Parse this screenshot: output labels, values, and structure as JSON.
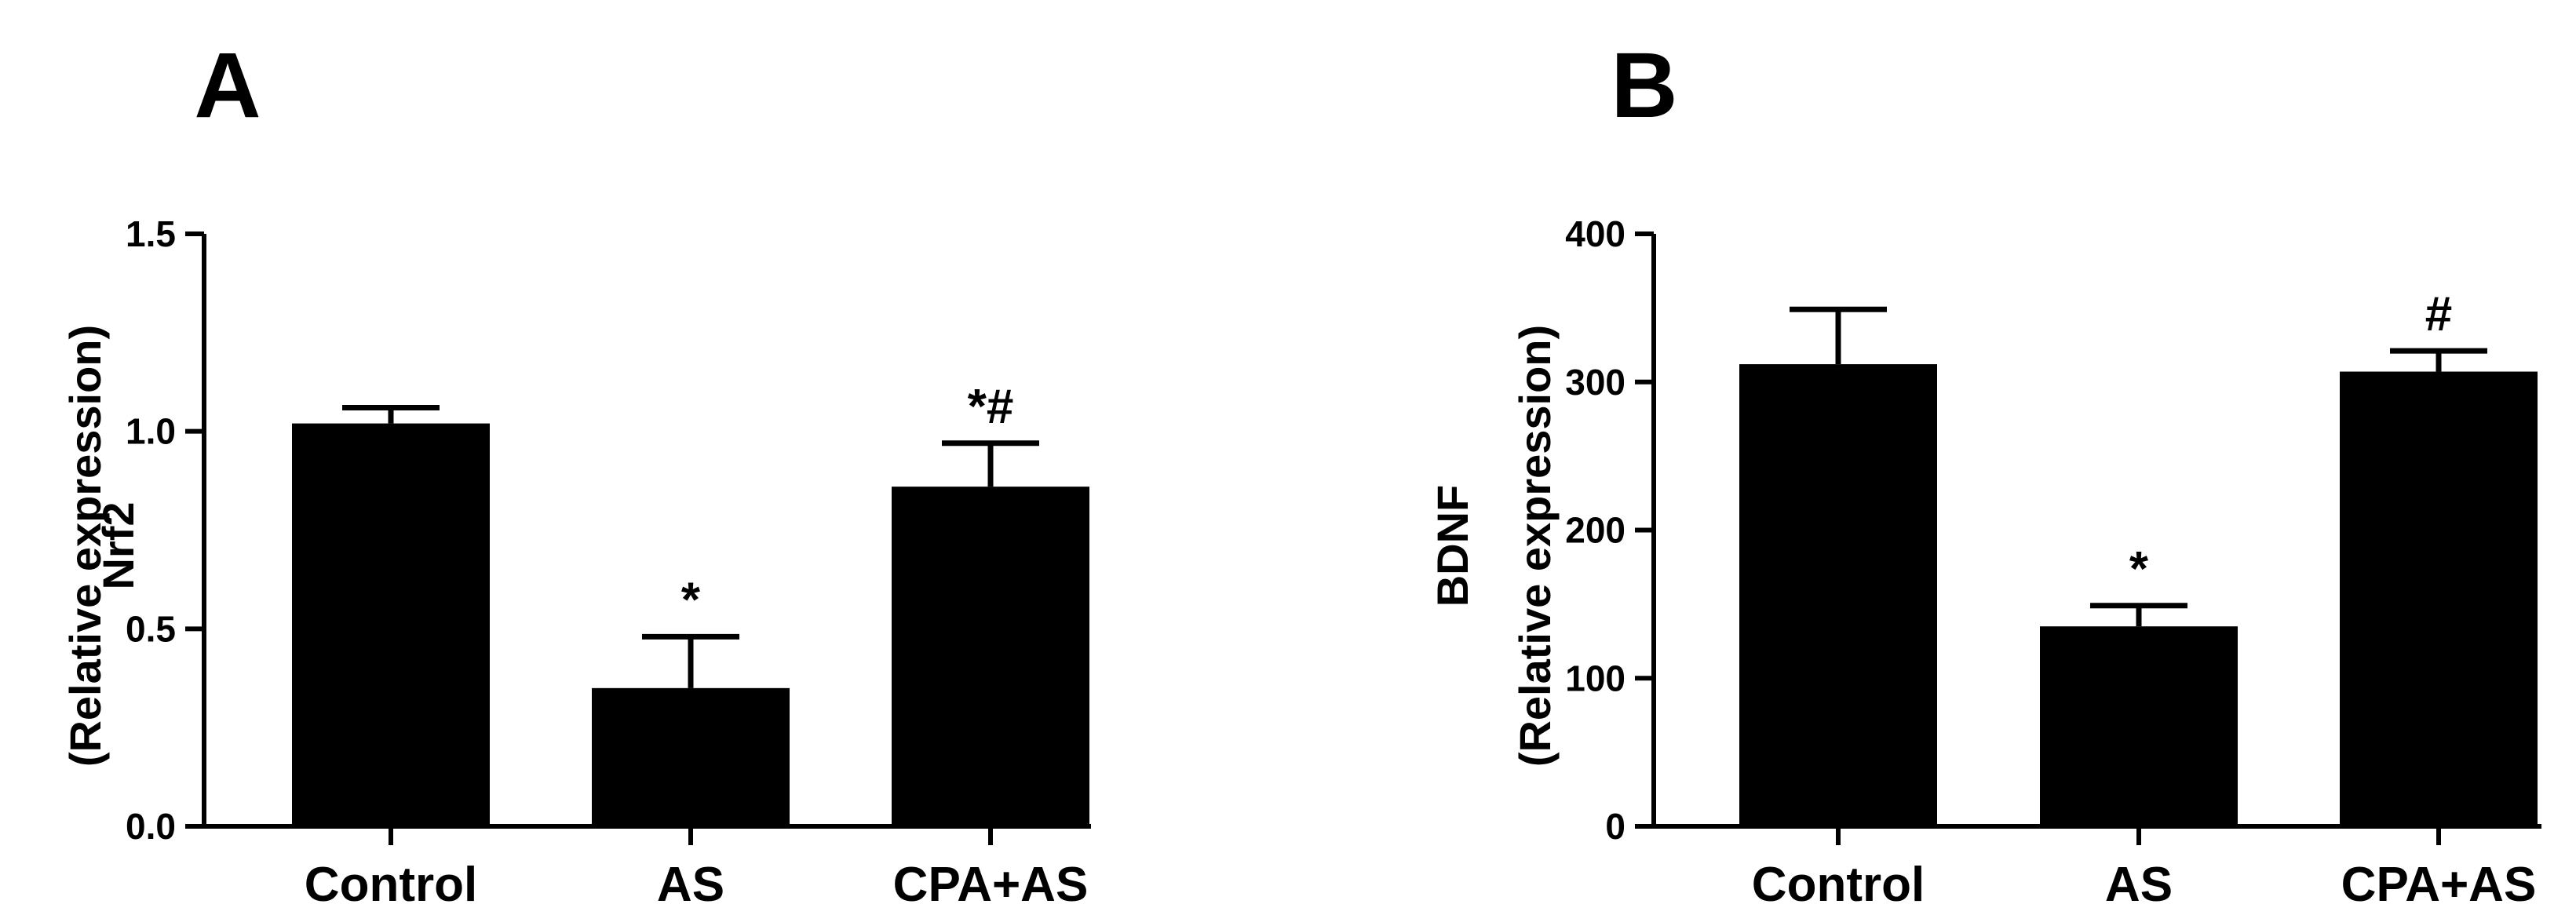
{
  "chart_data": [
    {
      "type": "bar",
      "panel_label": "A",
      "title": "",
      "xlabel": "",
      "ylabel_line1": "Nrf2",
      "ylabel_line2": "(Relative expression)",
      "categories": [
        "Control",
        "AS",
        "CPA+AS"
      ],
      "values": [
        1.02,
        0.35,
        0.86
      ],
      "errors": [
        0.04,
        0.13,
        0.11
      ],
      "annotations": [
        "",
        "*",
        "*#"
      ],
      "ylim": [
        0,
        1.5
      ],
      "yticks": [
        0,
        0.5,
        1.0,
        1.5
      ],
      "ytick_labels": [
        "0.0",
        "0.5",
        "1.0",
        "1.5"
      ],
      "grid": false,
      "bar_color": "#000000"
    },
    {
      "type": "bar",
      "panel_label": "B",
      "title": "",
      "xlabel": "",
      "ylabel_line1": "BDNF",
      "ylabel_line2": "(Relative expression)",
      "categories": [
        "Control",
        "AS",
        "CPA+AS"
      ],
      "values": [
        312,
        135,
        307
      ],
      "errors": [
        37,
        14,
        14
      ],
      "annotations": [
        "",
        "*",
        "#"
      ],
      "ylim": [
        0,
        400
      ],
      "yticks": [
        0,
        100,
        200,
        300,
        400
      ],
      "ytick_labels": [
        "0",
        "100",
        "200",
        "300",
        "400"
      ],
      "grid": false,
      "bar_color": "#000000"
    }
  ]
}
